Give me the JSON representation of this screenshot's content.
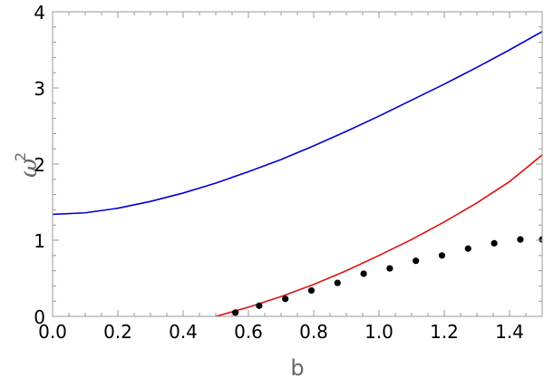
{
  "chart_data": {
    "type": "line",
    "xlabel": "b",
    "ylabel": {
      "base": "ω",
      "exponent": "2"
    },
    "xlim": [
      0.0,
      1.5
    ],
    "ylim": [
      0,
      4
    ],
    "x_ticks": [
      0.0,
      0.2,
      0.4,
      0.6,
      0.8,
      1.0,
      1.2,
      1.4
    ],
    "x_tick_labels": [
      "0.0",
      "0.2",
      "0.4",
      "0.6",
      "0.8",
      "1.0",
      "1.2",
      "1.4"
    ],
    "y_ticks": [
      0,
      1,
      2,
      3,
      4
    ],
    "y_tick_labels": [
      "0",
      "1",
      "2",
      "3",
      "4"
    ],
    "grid": false,
    "series": [
      {
        "style": "line",
        "color": "#0000cc",
        "x": [
          0.0,
          0.1,
          0.2,
          0.3,
          0.4,
          0.5,
          0.6,
          0.7,
          0.8,
          0.9,
          1.0,
          1.1,
          1.2,
          1.3,
          1.4,
          1.5
        ],
        "y": [
          1.34,
          1.36,
          1.42,
          1.51,
          1.62,
          1.75,
          1.9,
          2.06,
          2.24,
          2.43,
          2.63,
          2.84,
          3.05,
          3.27,
          3.5,
          3.74
        ]
      },
      {
        "style": "line",
        "color": "#dd1111",
        "x": [
          0.5,
          0.6,
          0.7,
          0.8,
          0.9,
          1.0,
          1.1,
          1.2,
          1.3,
          1.4,
          1.5
        ],
        "y": [
          0.0,
          0.12,
          0.26,
          0.42,
          0.6,
          0.8,
          1.01,
          1.24,
          1.49,
          1.77,
          2.12
        ]
      },
      {
        "style": "points",
        "color": "#000000",
        "x": [
          0.56,
          0.633,
          0.713,
          0.793,
          0.873,
          0.953,
          1.033,
          1.113,
          1.193,
          1.273,
          1.353,
          1.433,
          1.5
        ],
        "y": [
          0.05,
          0.14,
          0.23,
          0.34,
          0.44,
          0.56,
          0.63,
          0.73,
          0.8,
          0.89,
          0.96,
          1.01,
          1.01
        ]
      }
    ]
  }
}
